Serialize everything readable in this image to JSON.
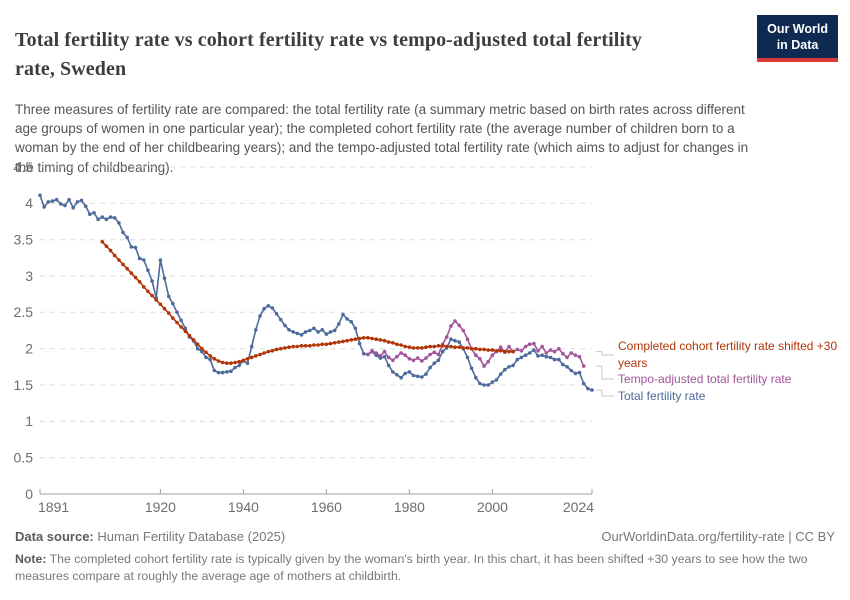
{
  "header": {
    "title": "Total fertility rate vs cohort fertility rate vs tempo-adjusted total fertility rate, Sweden",
    "subtitle": "Three measures of fertility rate are compared: the total fertility rate (a summary metric based on birth rates across different age groups of women in one particular year); the completed cohort fertility rate (the average number of children born to a woman by the end of her childbearing years); and the tempo-adjusted total fertility rate (which aims to adjust for changes in the timing of childbearing).",
    "logo_line1": "Our World",
    "logo_line2": "in Data",
    "logo_bg": "#0e2a51",
    "logo_bar": "#d93a34"
  },
  "chart_data": {
    "type": "line",
    "title": "Total fertility rate vs cohort fertility rate vs tempo-adjusted total fertility rate, Sweden",
    "xlabel": "",
    "ylabel": "",
    "xlim": [
      1891,
      2024
    ],
    "ylim": [
      0,
      4.5
    ],
    "xticks": [
      1891,
      1920,
      1940,
      1960,
      1980,
      2000,
      2024
    ],
    "yticks": [
      0,
      0.5,
      1,
      1.5,
      2,
      2.5,
      3,
      3.5,
      4,
      4.5
    ],
    "grid": "horizontal-dashed",
    "legend_position": "right",
    "marker": "dot",
    "series": [
      {
        "id": "completed-cohort-fertility-rate-shifted",
        "name": "Completed cohort fertility rate shifted +30 years",
        "color": "#B13507",
        "points": [
          [
            1906,
            3.47
          ],
          [
            1907,
            3.41
          ],
          [
            1908,
            3.35
          ],
          [
            1909,
            3.28
          ],
          [
            1910,
            3.22
          ],
          [
            1911,
            3.16
          ],
          [
            1912,
            3.1
          ],
          [
            1913,
            3.04
          ],
          [
            1914,
            2.98
          ],
          [
            1915,
            2.92
          ],
          [
            1916,
            2.85
          ],
          [
            1917,
            2.79
          ],
          [
            1918,
            2.73
          ],
          [
            1919,
            2.67
          ],
          [
            1920,
            2.61
          ],
          [
            1921,
            2.55
          ],
          [
            1922,
            2.49
          ],
          [
            1923,
            2.42
          ],
          [
            1924,
            2.36
          ],
          [
            1925,
            2.3
          ],
          [
            1926,
            2.24
          ],
          [
            1927,
            2.18
          ],
          [
            1928,
            2.12
          ],
          [
            1929,
            2.06
          ],
          [
            1930,
            2.0
          ],
          [
            1931,
            1.95
          ],
          [
            1932,
            1.9
          ],
          [
            1933,
            1.86
          ],
          [
            1934,
            1.83
          ],
          [
            1935,
            1.81
          ],
          [
            1936,
            1.8
          ],
          [
            1937,
            1.8
          ],
          [
            1938,
            1.81
          ],
          [
            1939,
            1.82
          ],
          [
            1940,
            1.84
          ],
          [
            1941,
            1.86
          ],
          [
            1942,
            1.88
          ],
          [
            1943,
            1.9
          ],
          [
            1944,
            1.92
          ],
          [
            1945,
            1.94
          ],
          [
            1946,
            1.96
          ],
          [
            1947,
            1.97
          ],
          [
            1948,
            1.99
          ],
          [
            1949,
            2.0
          ],
          [
            1950,
            2.01
          ],
          [
            1951,
            2.02
          ],
          [
            1952,
            2.03
          ],
          [
            1953,
            2.03
          ],
          [
            1954,
            2.04
          ],
          [
            1955,
            2.04
          ],
          [
            1956,
            2.04
          ],
          [
            1957,
            2.05
          ],
          [
            1958,
            2.05
          ],
          [
            1959,
            2.06
          ],
          [
            1960,
            2.06
          ],
          [
            1961,
            2.07
          ],
          [
            1962,
            2.08
          ],
          [
            1963,
            2.09
          ],
          [
            1964,
            2.1
          ],
          [
            1965,
            2.11
          ],
          [
            1966,
            2.12
          ],
          [
            1967,
            2.13
          ],
          [
            1968,
            2.14
          ],
          [
            1969,
            2.15
          ],
          [
            1970,
            2.15
          ],
          [
            1971,
            2.14
          ],
          [
            1972,
            2.13
          ],
          [
            1973,
            2.12
          ],
          [
            1974,
            2.11
          ],
          [
            1975,
            2.09
          ],
          [
            1976,
            2.08
          ],
          [
            1977,
            2.06
          ],
          [
            1978,
            2.05
          ],
          [
            1979,
            2.03
          ],
          [
            1980,
            2.02
          ],
          [
            1981,
            2.01
          ],
          [
            1982,
            2.01
          ],
          [
            1983,
            2.01
          ],
          [
            1984,
            2.02
          ],
          [
            1985,
            2.03
          ],
          [
            1986,
            2.03
          ],
          [
            1987,
            2.04
          ],
          [
            1988,
            2.04
          ],
          [
            1989,
            2.03
          ],
          [
            1990,
            2.03
          ],
          [
            1991,
            2.02
          ],
          [
            1992,
            2.02
          ],
          [
            1993,
            2.01
          ],
          [
            1994,
            2.01
          ],
          [
            1995,
            2.0
          ],
          [
            1996,
            2.0
          ],
          [
            1997,
            1.99
          ],
          [
            1998,
            1.99
          ],
          [
            1999,
            1.98
          ],
          [
            2000,
            1.98
          ],
          [
            2001,
            1.97
          ],
          [
            2002,
            1.97
          ],
          [
            2003,
            1.96
          ],
          [
            2004,
            1.96
          ],
          [
            2005,
            1.96
          ]
        ]
      },
      {
        "id": "tempo-adjusted-total-fertility-rate",
        "name": "Tempo-adjusted total fertility rate",
        "color": "#A2559C",
        "points": [
          [
            1970,
            1.92
          ],
          [
            1971,
            1.97
          ],
          [
            1972,
            1.94
          ],
          [
            1973,
            1.9
          ],
          [
            1974,
            1.96
          ],
          [
            1975,
            1.88
          ],
          [
            1976,
            1.84
          ],
          [
            1977,
            1.89
          ],
          [
            1978,
            1.94
          ],
          [
            1979,
            1.91
          ],
          [
            1980,
            1.86
          ],
          [
            1981,
            1.84
          ],
          [
            1982,
            1.87
          ],
          [
            1983,
            1.83
          ],
          [
            1984,
            1.87
          ],
          [
            1985,
            1.92
          ],
          [
            1986,
            1.95
          ],
          [
            1987,
            1.92
          ],
          [
            1988,
            2.06
          ],
          [
            1989,
            2.16
          ],
          [
            1990,
            2.31
          ],
          [
            1991,
            2.38
          ],
          [
            1992,
            2.32
          ],
          [
            1993,
            2.25
          ],
          [
            1994,
            2.13
          ],
          [
            1995,
            2.0
          ],
          [
            1996,
            1.91
          ],
          [
            1997,
            1.86
          ],
          [
            1998,
            1.76
          ],
          [
            1999,
            1.82
          ],
          [
            2000,
            1.91
          ],
          [
            2001,
            1.96
          ],
          [
            2002,
            2.02
          ],
          [
            2003,
            1.95
          ],
          [
            2004,
            2.03
          ],
          [
            2005,
            1.96
          ],
          [
            2006,
            1.99
          ],
          [
            2007,
            1.97
          ],
          [
            2008,
            2.03
          ],
          [
            2009,
            2.06
          ],
          [
            2010,
            2.07
          ],
          [
            2011,
            1.97
          ],
          [
            2012,
            2.03
          ],
          [
            2013,
            1.94
          ],
          [
            2014,
            1.98
          ],
          [
            2015,
            1.96
          ],
          [
            2016,
            2.0
          ],
          [
            2017,
            1.93
          ],
          [
            2018,
            1.88
          ],
          [
            2019,
            1.94
          ],
          [
            2020,
            1.91
          ],
          [
            2021,
            1.89
          ],
          [
            2022,
            1.76
          ]
        ]
      },
      {
        "id": "total-fertility-rate",
        "name": "Total fertility rate",
        "color": "#4C6A9C",
        "points": [
          [
            1891,
            4.11
          ],
          [
            1892,
            3.95
          ],
          [
            1893,
            4.02
          ],
          [
            1894,
            4.03
          ],
          [
            1895,
            4.05
          ],
          [
            1896,
            3.99
          ],
          [
            1897,
            3.97
          ],
          [
            1898,
            4.05
          ],
          [
            1899,
            3.94
          ],
          [
            1900,
            4.02
          ],
          [
            1901,
            4.04
          ],
          [
            1902,
            3.96
          ],
          [
            1903,
            3.85
          ],
          [
            1904,
            3.87
          ],
          [
            1905,
            3.78
          ],
          [
            1906,
            3.81
          ],
          [
            1907,
            3.78
          ],
          [
            1908,
            3.81
          ],
          [
            1909,
            3.8
          ],
          [
            1910,
            3.73
          ],
          [
            1911,
            3.6
          ],
          [
            1912,
            3.53
          ],
          [
            1913,
            3.4
          ],
          [
            1914,
            3.39
          ],
          [
            1915,
            3.24
          ],
          [
            1916,
            3.22
          ],
          [
            1917,
            3.08
          ],
          [
            1918,
            2.93
          ],
          [
            1919,
            2.7
          ],
          [
            1920,
            3.22
          ],
          [
            1921,
            2.97
          ],
          [
            1922,
            2.72
          ],
          [
            1923,
            2.62
          ],
          [
            1924,
            2.5
          ],
          [
            1925,
            2.39
          ],
          [
            1926,
            2.28
          ],
          [
            1927,
            2.16
          ],
          [
            1928,
            2.11
          ],
          [
            1929,
            2.0
          ],
          [
            1930,
            1.96
          ],
          [
            1931,
            1.88
          ],
          [
            1932,
            1.85
          ],
          [
            1933,
            1.7
          ],
          [
            1934,
            1.67
          ],
          [
            1935,
            1.67
          ],
          [
            1936,
            1.68
          ],
          [
            1937,
            1.69
          ],
          [
            1938,
            1.74
          ],
          [
            1939,
            1.77
          ],
          [
            1940,
            1.83
          ],
          [
            1941,
            1.8
          ],
          [
            1942,
            2.03
          ],
          [
            1943,
            2.26
          ],
          [
            1944,
            2.45
          ],
          [
            1945,
            2.55
          ],
          [
            1946,
            2.59
          ],
          [
            1947,
            2.56
          ],
          [
            1948,
            2.48
          ],
          [
            1949,
            2.4
          ],
          [
            1950,
            2.32
          ],
          [
            1951,
            2.26
          ],
          [
            1952,
            2.23
          ],
          [
            1953,
            2.21
          ],
          [
            1954,
            2.19
          ],
          [
            1955,
            2.23
          ],
          [
            1956,
            2.25
          ],
          [
            1957,
            2.28
          ],
          [
            1958,
            2.23
          ],
          [
            1959,
            2.26
          ],
          [
            1960,
            2.2
          ],
          [
            1961,
            2.23
          ],
          [
            1962,
            2.25
          ],
          [
            1963,
            2.34
          ],
          [
            1964,
            2.47
          ],
          [
            1965,
            2.41
          ],
          [
            1966,
            2.37
          ],
          [
            1967,
            2.28
          ],
          [
            1968,
            2.07
          ],
          [
            1969,
            1.93
          ],
          [
            1970,
            1.92
          ],
          [
            1971,
            1.96
          ],
          [
            1972,
            1.91
          ],
          [
            1973,
            1.87
          ],
          [
            1974,
            1.89
          ],
          [
            1975,
            1.77
          ],
          [
            1976,
            1.68
          ],
          [
            1977,
            1.64
          ],
          [
            1978,
            1.6
          ],
          [
            1979,
            1.66
          ],
          [
            1980,
            1.68
          ],
          [
            1981,
            1.63
          ],
          [
            1982,
            1.62
          ],
          [
            1983,
            1.61
          ],
          [
            1984,
            1.65
          ],
          [
            1985,
            1.74
          ],
          [
            1986,
            1.8
          ],
          [
            1987,
            1.84
          ],
          [
            1988,
            1.96
          ],
          [
            1989,
            2.01
          ],
          [
            1990,
            2.13
          ],
          [
            1991,
            2.11
          ],
          [
            1992,
            2.09
          ],
          [
            1993,
            2.0
          ],
          [
            1994,
            1.88
          ],
          [
            1995,
            1.73
          ],
          [
            1996,
            1.6
          ],
          [
            1997,
            1.52
          ],
          [
            1998,
            1.5
          ],
          [
            1999,
            1.5
          ],
          [
            2000,
            1.54
          ],
          [
            2001,
            1.57
          ],
          [
            2002,
            1.65
          ],
          [
            2003,
            1.71
          ],
          [
            2004,
            1.75
          ],
          [
            2005,
            1.77
          ],
          [
            2006,
            1.85
          ],
          [
            2007,
            1.88
          ],
          [
            2008,
            1.91
          ],
          [
            2009,
            1.94
          ],
          [
            2010,
            1.98
          ],
          [
            2011,
            1.9
          ],
          [
            2012,
            1.91
          ],
          [
            2013,
            1.89
          ],
          [
            2014,
            1.88
          ],
          [
            2015,
            1.85
          ],
          [
            2016,
            1.85
          ],
          [
            2017,
            1.78
          ],
          [
            2018,
            1.75
          ],
          [
            2019,
            1.7
          ],
          [
            2020,
            1.66
          ],
          [
            2021,
            1.67
          ],
          [
            2022,
            1.52
          ],
          [
            2023,
            1.45
          ],
          [
            2024,
            1.43
          ]
        ]
      }
    ]
  },
  "footer": {
    "sources_label": "Data source:",
    "sources_text": " Human Fertility Database (2025)",
    "citation": "OurWorldinData.org/fertility-rate | CC BY",
    "note_label": "Note:",
    "note_text": " The completed cohort fertility rate is typically given by the woman's birth year. In this chart, it has been shifted +30 years to see how the two measures compare at roughly the average age of mothers at childbirth."
  }
}
